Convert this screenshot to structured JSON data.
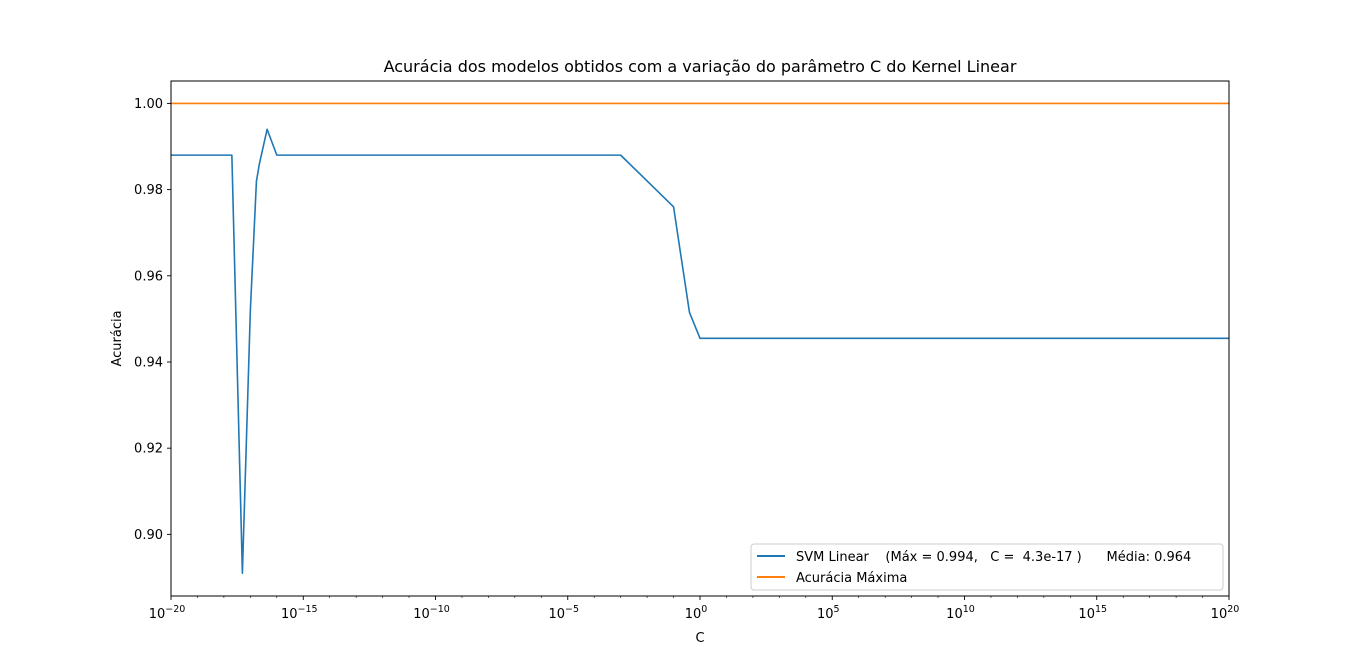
{
  "chart_data": {
    "type": "line",
    "title": "Acurácia dos modelos obtidos com a variação do parâmetro C do Kernel Linear",
    "xlabel": "C",
    "ylabel": "Acurácia",
    "xscale": "log",
    "xlim": [
      1e-20,
      1e+20
    ],
    "ylim": [
      0.8857,
      1.0052
    ],
    "grid": false,
    "legend_position": "lower-right",
    "x_ticks": [
      {
        "value": 1e-20,
        "base": "10",
        "exp": "−20"
      },
      {
        "value": 1e-15,
        "base": "10",
        "exp": "−15"
      },
      {
        "value": 1e-10,
        "base": "10",
        "exp": "−10"
      },
      {
        "value": 1e-05,
        "base": "10",
        "exp": "−5"
      },
      {
        "value": 1,
        "base": "10",
        "exp": "0"
      },
      {
        "value": 100000.0,
        "base": "10",
        "exp": "5"
      },
      {
        "value": 10000000000.0,
        "base": "10",
        "exp": "10"
      },
      {
        "value": 1000000000000000.0,
        "base": "10",
        "exp": "15"
      },
      {
        "value": 1e+20,
        "base": "10",
        "exp": "20"
      }
    ],
    "y_ticks": [
      {
        "value": 0.9,
        "label": "0.90"
      },
      {
        "value": 0.92,
        "label": "0.92"
      },
      {
        "value": 0.94,
        "label": "0.94"
      },
      {
        "value": 0.96,
        "label": "0.96"
      },
      {
        "value": 0.98,
        "label": "0.98"
      },
      {
        "value": 1.0,
        "label": "1.00"
      }
    ],
    "series": [
      {
        "name": "SVM Linear    (Máx = 0.994,   C =  4.3e-17 )      Média: 0.964",
        "color": "#1f77b4",
        "x": [
          1e-20,
          1e-19,
          2e-19,
          2e-18,
          5e-18,
          1e-17,
          1.7e-17,
          2.2e-17,
          4.3e-17,
          1e-16,
          2e-16,
          1e-15,
          1e-12,
          1e-09,
          1e-06,
          0.001,
          0.1,
          0.4,
          1,
          10,
          100,
          100000.0,
          10000000000.0,
          1000000000000000.0,
          1e+20
        ],
        "y": [
          0.988,
          0.988,
          0.988,
          0.988,
          0.891,
          0.952,
          0.982,
          0.986,
          0.994,
          0.988,
          0.988,
          0.988,
          0.988,
          0.988,
          0.988,
          0.988,
          0.976,
          0.9515,
          0.9455,
          0.9455,
          0.9455,
          0.9455,
          0.9455,
          0.9455,
          0.9455
        ]
      },
      {
        "name": "Acurácia Máxima",
        "color": "#ff7f0e",
        "x": [
          1e-20,
          1e+20
        ],
        "y": [
          1.0,
          1.0
        ]
      }
    ]
  }
}
